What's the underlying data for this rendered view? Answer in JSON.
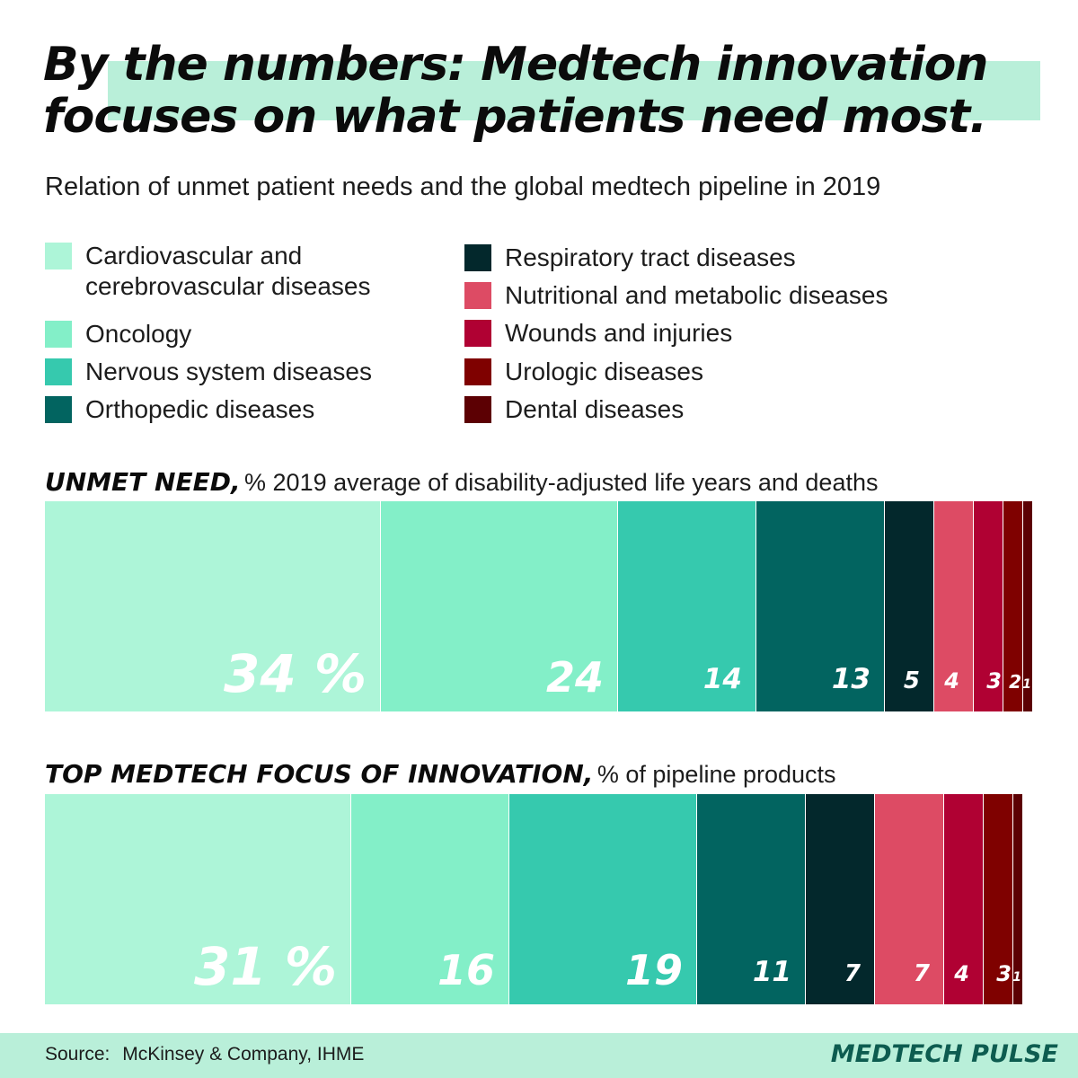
{
  "title": {
    "line1": "By the numbers: Medtech innovation",
    "line2": "focuses on what patients need most."
  },
  "subtitle": "Relation of unmet patient needs and the global medtech pipeline in 2019",
  "legend": {
    "left": [
      {
        "line1": "Cardiovascular and",
        "line2": "cerebrovascular diseases",
        "color": "#adf5d8"
      },
      {
        "line1": "Oncology",
        "line2": "",
        "color": "#83efc8"
      },
      {
        "line1": "Nervous system diseases",
        "line2": "",
        "color": "#36c9ae"
      },
      {
        "line1": "Orthopedic diseases",
        "line2": "",
        "color": "#026460"
      }
    ],
    "right": [
      {
        "line1": "Respiratory tract diseases",
        "color": "#03282c"
      },
      {
        "line1": "Nutritional and metabolic diseases",
        "color": "#dd4b64"
      },
      {
        "line1": "Wounds and injuries",
        "color": "#b00133"
      },
      {
        "line1": "Urologic diseases",
        "color": "#7f0100"
      },
      {
        "line1": "Dental diseases",
        "color": "#5c0003"
      }
    ]
  },
  "sections": {
    "unmet": {
      "bold": "UNMET NEED,",
      "rest": "% 2019 average of disability-adjusted life years and deaths"
    },
    "focus": {
      "bold": "TOP MEDTECH FOCUS OF INNOVATION,",
      "rest": "% of pipeline products"
    }
  },
  "chart_data": [
    {
      "type": "bar",
      "orientation": "horizontal-stacked",
      "title": "UNMET NEED, % 2019 average of disability-adjusted life years and deaths",
      "categories": [
        "Cardiovascular and cerebrovascular diseases",
        "Oncology",
        "Nervous system diseases",
        "Orthopedic diseases",
        "Respiratory tract diseases",
        "Nutritional and metabolic diseases",
        "Wounds and injuries",
        "Urologic diseases",
        "Dental diseases"
      ],
      "values": [
        34,
        24,
        14,
        13,
        5,
        4,
        3,
        2,
        1
      ],
      "labels": [
        "34 %",
        "24",
        "14",
        "13",
        "5",
        "4",
        "3",
        "2",
        "1"
      ],
      "colors": [
        "#adf5d8",
        "#83efc8",
        "#36c9ae",
        "#026460",
        "#03282c",
        "#dd4b64",
        "#b00133",
        "#7f0100",
        "#5c0003"
      ],
      "xlim": [
        0,
        100
      ]
    },
    {
      "type": "bar",
      "orientation": "horizontal-stacked",
      "title": "TOP MEDTECH FOCUS OF INNOVATION, % of pipeline products",
      "categories": [
        "Cardiovascular and cerebrovascular diseases",
        "Oncology",
        "Nervous system diseases",
        "Orthopedic diseases",
        "Respiratory tract diseases",
        "Nutritional and metabolic diseases",
        "Wounds and injuries",
        "Urologic diseases",
        "Dental diseases"
      ],
      "values": [
        31,
        16,
        19,
        11,
        7,
        7,
        4,
        3,
        1
      ],
      "labels": [
        "31 %",
        "16",
        "19",
        "11",
        "7",
        "7",
        "4",
        "3",
        "1"
      ],
      "colors": [
        "#adf5d8",
        "#83efc8",
        "#36c9ae",
        "#026460",
        "#03282c",
        "#dd4b64",
        "#b00133",
        "#7f0100",
        "#5c0003"
      ],
      "xlim": [
        0,
        100
      ]
    }
  ],
  "footer": {
    "source_label": "Source:",
    "source_text": "McKinsey & Company, IHME",
    "brand": "MEDTECH PULSE"
  }
}
